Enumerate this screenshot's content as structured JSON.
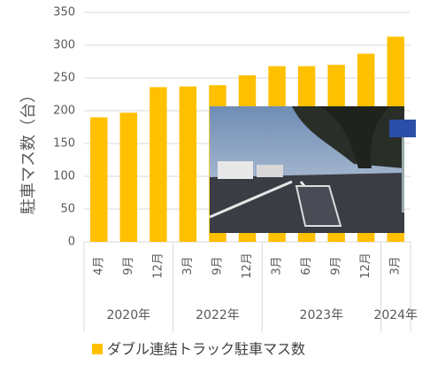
{
  "chart_data": {
    "type": "bar",
    "y_label": "駐車マス数（台）",
    "series_name": "ダブル連結トラック駐車マス数",
    "color": "#ffc000",
    "groups": [
      {
        "label": "2020年",
        "categories": [
          "4月",
          "9月",
          "12月"
        ],
        "values": [
          190,
          197,
          236
        ]
      },
      {
        "label": "2022年",
        "categories": [
          "3月",
          "9月",
          "12月"
        ],
        "values": [
          237,
          239,
          254
        ]
      },
      {
        "label": "2023年",
        "categories": [
          "3月",
          "6月",
          "9月",
          "12月"
        ],
        "values": [
          268,
          268,
          270,
          287
        ]
      },
      {
        "label": "2024年",
        "categories": [
          "3月"
        ],
        "values": [
          313
        ]
      }
    ],
    "ylim": [
      0,
      350
    ],
    "yticks": [
      0,
      50,
      100,
      150,
      200,
      250,
      300,
      350
    ],
    "grid": true
  }
}
